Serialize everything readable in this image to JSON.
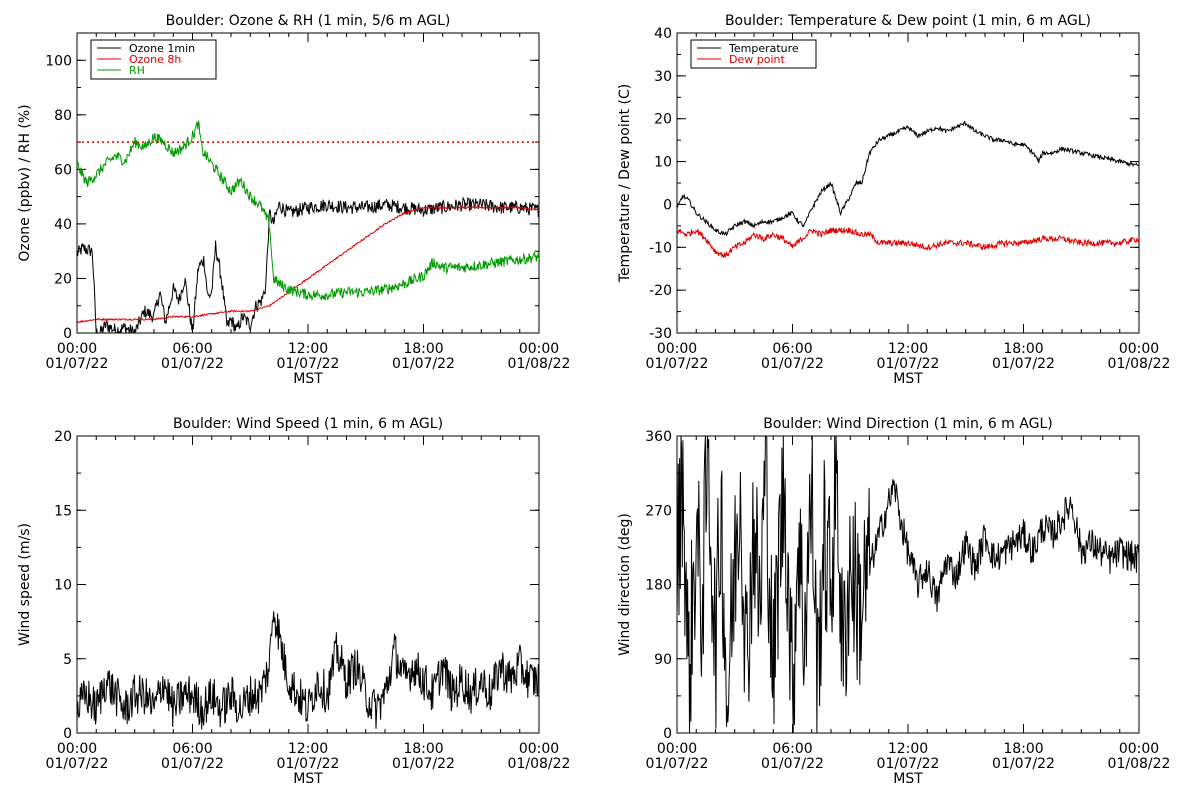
{
  "chart_data": [
    {
      "type": "line",
      "title": "Boulder: Ozone & RH (1 min, 5/6 m AGL)",
      "xlabel": "MST",
      "ylabel": "Ozone (ppbv) / RH (%)",
      "ylim": [
        0,
        110
      ],
      "yticks": [
        0,
        20,
        40,
        60,
        80,
        100
      ],
      "xlim_hours": [
        0,
        24
      ],
      "xtick_hours": [
        0,
        6,
        12,
        18,
        24
      ],
      "xtick_times": [
        "00:00",
        "06:00",
        "12:00",
        "18:00",
        "00:00"
      ],
      "xtick_dates": [
        "01/07/22",
        "01/07/22",
        "01/07/22",
        "01/07/22",
        "01/08/22"
      ],
      "legend_position": "top-left",
      "reference_line": {
        "y": 70,
        "color": "#e00000",
        "style": "dotted"
      },
      "series": [
        {
          "name": "Ozone 1min",
          "color": "#000000",
          "hours": [
            0,
            0.3,
            0.8,
            1,
            1.2,
            1.5,
            2,
            2.5,
            3,
            3.5,
            4,
            4.3,
            4.6,
            5,
            5.3,
            5.6,
            6,
            6.3,
            6.6,
            6.8,
            7,
            7.2,
            7.5,
            7.8,
            8,
            8.3,
            8.6,
            9,
            9.3,
            9.6,
            9.8,
            10,
            10.2,
            10.5,
            11,
            12,
            13,
            14,
            15,
            16,
            17,
            18,
            19,
            20,
            21,
            22,
            23,
            24
          ],
          "values": [
            29,
            31,
            30,
            0,
            0,
            3,
            1,
            2,
            0,
            8,
            6,
            15,
            4,
            16,
            12,
            20,
            0,
            24,
            27,
            13,
            15,
            32,
            20,
            2,
            5,
            1,
            6,
            3,
            10,
            12,
            17,
            44,
            40,
            47,
            44,
            46,
            47,
            46,
            46,
            47,
            46,
            45,
            46,
            47,
            47,
            46,
            46,
            45
          ]
        },
        {
          "name": "Ozone 8h",
          "color": "#e00000",
          "hours": [
            0,
            1,
            2,
            3,
            4,
            5,
            6,
            7,
            8,
            9,
            10,
            11,
            12,
            13,
            14,
            15,
            16,
            17,
            18,
            19,
            20,
            21,
            22,
            23,
            24
          ],
          "values": [
            4,
            5,
            5,
            5,
            5,
            6,
            6,
            7,
            8,
            8,
            10,
            15,
            20,
            25,
            30,
            35,
            40,
            44,
            46,
            46,
            46,
            46,
            46,
            46,
            45
          ]
        },
        {
          "name": "RH",
          "color": "#009900",
          "hours": [
            0,
            0.5,
            1,
            1.5,
            2,
            2.5,
            3,
            3.5,
            4,
            4.5,
            5,
            5.5,
            6,
            6.3,
            6.5,
            7,
            7.5,
            8,
            8.5,
            9,
            9.5,
            10,
            10.2,
            10.5,
            11,
            12,
            13,
            14,
            15,
            16,
            17,
            18,
            18.5,
            19,
            20,
            21,
            22,
            23,
            24
          ],
          "values": [
            62,
            55,
            58,
            62,
            65,
            63,
            70,
            68,
            72,
            70,
            66,
            68,
            72,
            77,
            67,
            62,
            57,
            52,
            56,
            50,
            47,
            40,
            20,
            18,
            16,
            14,
            14,
            15,
            15,
            16,
            18,
            21,
            26,
            24,
            24,
            25,
            26,
            27,
            28
          ]
        }
      ]
    },
    {
      "type": "line",
      "title": "Boulder: Temperature & Dew point (1 min, 6 m AGL)",
      "xlabel": "MST",
      "ylabel": "Temperature / Dew point (C)",
      "ylim": [
        -30,
        40
      ],
      "yticks": [
        -30,
        -20,
        -10,
        0,
        10,
        20,
        30,
        40
      ],
      "xlim_hours": [
        0,
        24
      ],
      "xtick_hours": [
        0,
        6,
        12,
        18,
        24
      ],
      "xtick_times": [
        "00:00",
        "06:00",
        "12:00",
        "18:00",
        "00:00"
      ],
      "xtick_dates": [
        "01/07/22",
        "01/07/22",
        "01/07/22",
        "01/07/22",
        "01/08/22"
      ],
      "legend_position": "top-left",
      "series": [
        {
          "name": "Temperature",
          "color": "#000000",
          "hours": [
            0,
            0.3,
            0.6,
            1,
            1.5,
            2,
            2.5,
            3,
            3.5,
            4,
            4.5,
            5,
            5.5,
            6,
            6.3,
            6.6,
            7,
            7.5,
            8,
            8.5,
            9,
            9.3,
            9.6,
            10,
            10.5,
            11,
            11.5,
            12,
            12.5,
            13,
            13.5,
            14,
            14.5,
            15,
            15.5,
            16,
            16.5,
            17,
            17.5,
            18,
            18.5,
            18.8,
            19,
            19.5,
            20,
            21,
            22,
            23,
            24
          ],
          "values": [
            -1,
            2,
            1,
            -2,
            -4,
            -6,
            -7,
            -5,
            -4,
            -5,
            -4,
            -4,
            -3,
            -2,
            -4,
            -5,
            -1,
            3,
            5,
            -2,
            2,
            5,
            5,
            12,
            15,
            16,
            17,
            18,
            16,
            17,
            18,
            17,
            18,
            19,
            17,
            16,
            15,
            15,
            14,
            14,
            12,
            10,
            12,
            12,
            13,
            12,
            11,
            10,
            9
          ]
        },
        {
          "name": "Dew point",
          "color": "#e00000",
          "hours": [
            0,
            0.5,
            1,
            1.5,
            2,
            2.5,
            3,
            3.5,
            4,
            4.5,
            5,
            5.5,
            6,
            6.5,
            7,
            7.5,
            8,
            8.5,
            9,
            9.5,
            10,
            10.5,
            11,
            12,
            13,
            14,
            15,
            16,
            17,
            18,
            19,
            20,
            21,
            22,
            23,
            24
          ],
          "values": [
            -6,
            -7,
            -6,
            -8,
            -11,
            -12,
            -10,
            -9,
            -7,
            -8,
            -7,
            -8,
            -10,
            -8,
            -6,
            -7,
            -6,
            -6,
            -6,
            -7,
            -7,
            -9,
            -9,
            -9,
            -10,
            -9,
            -9,
            -10,
            -9,
            -9,
            -8,
            -8,
            -9,
            -9,
            -9,
            -8
          ]
        }
      ]
    },
    {
      "type": "line",
      "title": "Boulder: Wind Speed (1 min, 6 m AGL)",
      "xlabel": "MST",
      "ylabel": "Wind speed (m/s)",
      "ylim": [
        0,
        20
      ],
      "yticks": [
        0,
        5,
        10,
        15,
        20
      ],
      "xlim_hours": [
        0,
        24
      ],
      "xtick_hours": [
        0,
        6,
        12,
        18,
        24
      ],
      "xtick_times": [
        "00:00",
        "06:00",
        "12:00",
        "18:00",
        "00:00"
      ],
      "xtick_dates": [
        "01/07/22",
        "01/07/22",
        "01/07/22",
        "01/07/22",
        "01/08/22"
      ],
      "series": [
        {
          "color": "#000000",
          "hours": [
            0,
            0.5,
            1,
            1.5,
            2,
            2.5,
            3,
            3.5,
            4,
            4.5,
            5,
            5.5,
            6,
            6.5,
            7,
            7.5,
            8,
            8.5,
            9,
            9.5,
            10,
            10.2,
            10.5,
            10.8,
            11,
            11.5,
            12,
            12.5,
            13,
            13.5,
            14,
            14.5,
            15,
            15.5,
            16,
            16.5,
            17,
            17.5,
            18,
            18.5,
            19,
            19.5,
            20,
            20.5,
            21,
            21.5,
            22,
            22.5,
            23,
            23.5,
            24
          ],
          "values": [
            1,
            2,
            1,
            3,
            2,
            1,
            2,
            2,
            1,
            3,
            1,
            2,
            2,
            1,
            2,
            1,
            2,
            1,
            2,
            2,
            4,
            8,
            6,
            4,
            3,
            2,
            1,
            3,
            2,
            5,
            3,
            4,
            2,
            1,
            2,
            5,
            3,
            4,
            3,
            2,
            4,
            2,
            3,
            2,
            3,
            2,
            4,
            3,
            4,
            3,
            3
          ]
        }
      ]
    },
    {
      "type": "line",
      "title": "Boulder: Wind Direction (1 min, 6 m AGL)",
      "xlabel": "MST",
      "ylabel": "Wind direction (deg)",
      "ylim": [
        0,
        360
      ],
      "yticks": [
        0,
        90,
        180,
        270,
        360
      ],
      "xlim_hours": [
        0,
        24
      ],
      "xtick_hours": [
        0,
        6,
        12,
        18,
        24
      ],
      "xtick_times": [
        "00:00",
        "06:00",
        "12:00",
        "18:00",
        "00:00"
      ],
      "xtick_dates": [
        "01/07/22",
        "01/07/22",
        "01/07/22",
        "01/07/22",
        "01/08/22"
      ],
      "series": [
        {
          "color": "#000000",
          "hours": [
            0,
            0.3,
            0.6,
            1,
            1.3,
            1.6,
            2,
            2.3,
            2.6,
            3,
            3.3,
            3.6,
            4,
            4.3,
            4.6,
            5,
            5.3,
            5.6,
            6,
            6.3,
            6.6,
            7,
            7.3,
            7.6,
            8,
            8.3,
            8.6,
            9,
            9.5,
            10,
            10.5,
            11,
            11.3,
            11.6,
            12,
            12.5,
            13,
            13.5,
            14,
            14.5,
            15,
            15.5,
            16,
            16.5,
            17,
            17.5,
            18,
            18.5,
            19,
            19.5,
            20,
            20.5,
            21,
            21.5,
            22,
            22.5,
            23,
            23.5,
            24
          ],
          "values": [
            200,
            320,
            60,
            240,
            150,
            340,
            100,
            280,
            30,
            200,
            310,
            80,
            260,
            140,
            330,
            60,
            220,
            300,
            40,
            250,
            120,
            290,
            60,
            230,
            180,
            330,
            80,
            210,
            150,
            200,
            240,
            280,
            300,
            260,
            220,
            180,
            200,
            160,
            210,
            190,
            230,
            200,
            240,
            210,
            220,
            230,
            240,
            220,
            250,
            240,
            260,
            280,
            220,
            230,
            220,
            210,
            220,
            215,
            210
          ]
        }
      ]
    }
  ]
}
